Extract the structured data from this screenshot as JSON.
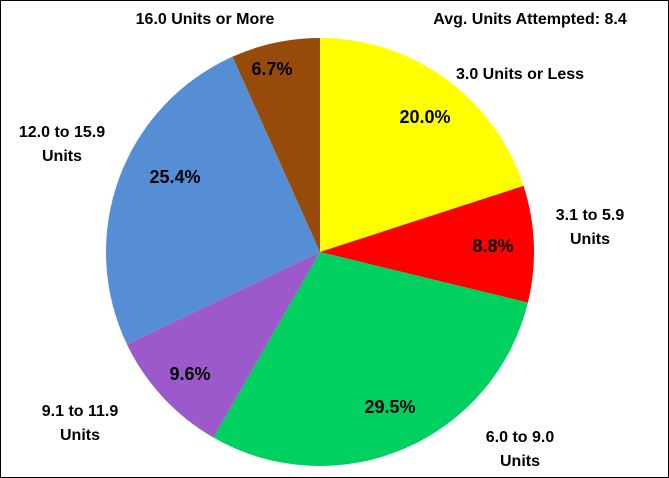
{
  "chart_data": {
    "type": "pie",
    "annotation": "Avg. Units Attempted: 8.4",
    "categories": [
      "3.0 Units or Less",
      "3.1 to 5.9 Units",
      "6.0 to 9.0 Units",
      "9.1 to 11.9 Units",
      "12.0 to 15.9 Units",
      "16.0 Units or More"
    ],
    "values": [
      20.0,
      8.8,
      29.5,
      9.6,
      25.4,
      6.7
    ],
    "value_labels": [
      "20.0%",
      "8.8%",
      "29.5%",
      "9.6%",
      "25.4%",
      "6.7%"
    ],
    "colors": [
      "#ffff00",
      "#ff0000",
      "#00d060",
      "#9b59cc",
      "#558ed5",
      "#964b0a"
    ]
  }
}
